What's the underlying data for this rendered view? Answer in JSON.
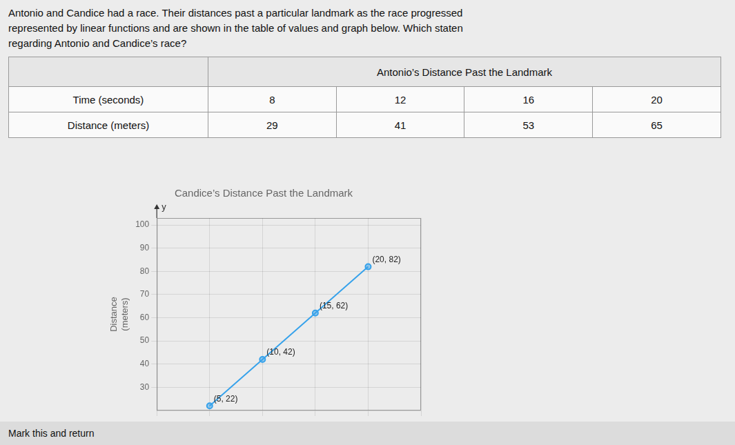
{
  "chart_data": [
    {
      "type": "table",
      "subtitle": [
        "Antonio and Candice had a race. Their distances past a particular landmark as the race progressed",
        "represented by linear functions and are shown in the table of values and graph below. Which staten",
        "regarding Antonio and Candice’s race?"
      ],
      "title": "Antonio’s Distance Past the Landmark",
      "xlabel": "Time (seconds)",
      "ylabel": "Distance (meters)",
      "x": [
        8,
        12,
        16,
        20
      ],
      "values": [
        29,
        41,
        53,
        65
      ],
      "annotations": [
        "Mark this and return"
      ]
    },
    {
      "type": "line",
      "title": "Candice’s Distance Past the Landmark",
      "ylabel": [
        "Distance",
        "(meters)"
      ],
      "x": [
        5,
        10,
        15,
        20
      ],
      "values": [
        22,
        42,
        62,
        82
      ],
      "data_labels": true,
      "value_labels": [
        "(5, 22)",
        "(10, 42)",
        "(15, 62)",
        "(20, 82)"
      ],
      "marker": "circle",
      "xlim": [
        0,
        25
      ],
      "xticks": [
        0,
        5,
        10,
        15,
        20,
        25
      ],
      "ylim": [
        20,
        103
      ],
      "yticks": [
        30,
        40,
        50,
        60,
        70,
        80,
        90,
        100
      ],
      "tick_labels": "y",
      "grid": true,
      "annotations": [
        "y"
      ]
    }
  ]
}
